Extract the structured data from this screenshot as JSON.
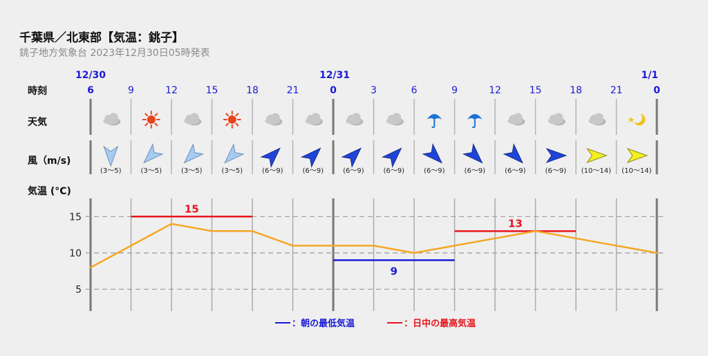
{
  "header": {
    "title": "千葉県／北東部【気温：銚子】",
    "subtitle": "銚子地方気象台 2023年12月30日05時発表"
  },
  "rows": {
    "time_label": "時刻",
    "weather_label": "天気",
    "wind_label": "風（m/s)",
    "temp_label": "気温 (°C)"
  },
  "date_labels": [
    "12/30",
    "12/31",
    "1/1"
  ],
  "legend": {
    "min_label": "：朝の最低気温",
    "max_label": "：日中の最高気温"
  },
  "colors": {
    "line": "#f5a623",
    "max": "#e8141b",
    "min": "#1a1ad6",
    "hour": "#1a1ad6"
  },
  "chart_data": {
    "type": "line",
    "hours": [
      "6",
      "9",
      "12",
      "15",
      "18",
      "21",
      "0",
      "3",
      "6",
      "9",
      "12",
      "15",
      "18",
      "21",
      "0"
    ],
    "temperature": [
      8,
      11,
      14,
      13,
      13,
      11,
      11,
      11,
      10,
      11,
      12,
      13,
      12,
      11,
      10
    ],
    "ylim": [
      2,
      17.5
    ],
    "yticks": [
      5,
      10,
      15
    ],
    "max_temps": [
      {
        "value": 15,
        "label": "15",
        "from_index": 1,
        "to_index": 4
      },
      {
        "value": 13,
        "label": "13",
        "from_index": 9,
        "to_index": 12
      }
    ],
    "min_temps": [
      {
        "value": 9,
        "label": "9",
        "from_index": 6,
        "to_index": 9
      }
    ],
    "weather": [
      "cloud-icon",
      "sun-icon",
      "cloud-icon",
      "sun-icon",
      "cloud-icon",
      "cloud-icon",
      "cloud-icon",
      "cloud-icon",
      "umbrella-icon",
      "umbrella-icon",
      "cloud-icon",
      "cloud-icon",
      "cloud-icon",
      "moon-star-icon"
    ],
    "wind": [
      {
        "speed": "(3〜5)",
        "level": "light",
        "dir": "N"
      },
      {
        "speed": "(3〜5)",
        "level": "light",
        "dir": "NE"
      },
      {
        "speed": "(3〜5)",
        "level": "light",
        "dir": "NE"
      },
      {
        "speed": "(3〜5)",
        "level": "light",
        "dir": "NE"
      },
      {
        "speed": "(6〜9)",
        "level": "medium",
        "dir": "SW"
      },
      {
        "speed": "(6〜9)",
        "level": "medium",
        "dir": "SW"
      },
      {
        "speed": "(6〜9)",
        "level": "medium",
        "dir": "SW"
      },
      {
        "speed": "(6〜9)",
        "level": "medium",
        "dir": "SW"
      },
      {
        "speed": "(6〜9)",
        "level": "medium",
        "dir": "NW"
      },
      {
        "speed": "(6〜9)",
        "level": "medium",
        "dir": "NW"
      },
      {
        "speed": "(6〜9)",
        "level": "medium",
        "dir": "NW"
      },
      {
        "speed": "(6〜9)",
        "level": "medium",
        "dir": "W"
      },
      {
        "speed": "(10〜14)",
        "level": "strong",
        "dir": "W"
      },
      {
        "speed": "(10〜14)",
        "level": "strong",
        "dir": "W"
      }
    ]
  }
}
